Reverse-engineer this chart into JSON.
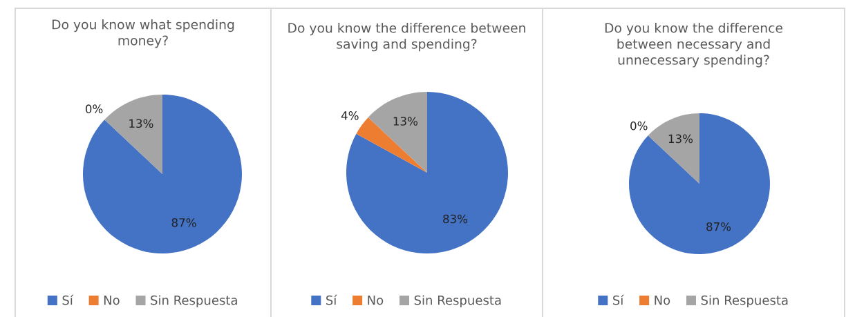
{
  "chart_data": [
    {
      "type": "pie",
      "title": "Do you know what spending\nmoney?",
      "categories": [
        "Sí",
        "No",
        "Sin Respuesta"
      ],
      "values": [
        87,
        0,
        13
      ],
      "value_labels": [
        "87%",
        "0%",
        "13%"
      ],
      "colors": [
        "#4472c4",
        "#ed7d31",
        "#a5a5a5"
      ],
      "legend": "bottom"
    },
    {
      "type": "pie",
      "title": "Do you know the difference between\nsaving and spending?",
      "categories": [
        "Sí",
        "No",
        "Sin Respuesta"
      ],
      "values": [
        83,
        4,
        13
      ],
      "value_labels": [
        "83%",
        "4%",
        "13%"
      ],
      "colors": [
        "#4472c4",
        "#ed7d31",
        "#a5a5a5"
      ],
      "legend": "bottom"
    },
    {
      "type": "pie",
      "title": "Do you know the difference\nbetween necessary and\nunnecessary spending?",
      "categories": [
        "Sí",
        "No",
        "Sin Respuesta"
      ],
      "values": [
        87,
        0,
        13
      ],
      "value_labels": [
        "87%",
        "0%",
        "13%"
      ],
      "colors": [
        "#4472c4",
        "#ed7d31",
        "#a5a5a5"
      ],
      "legend": "bottom"
    }
  ]
}
